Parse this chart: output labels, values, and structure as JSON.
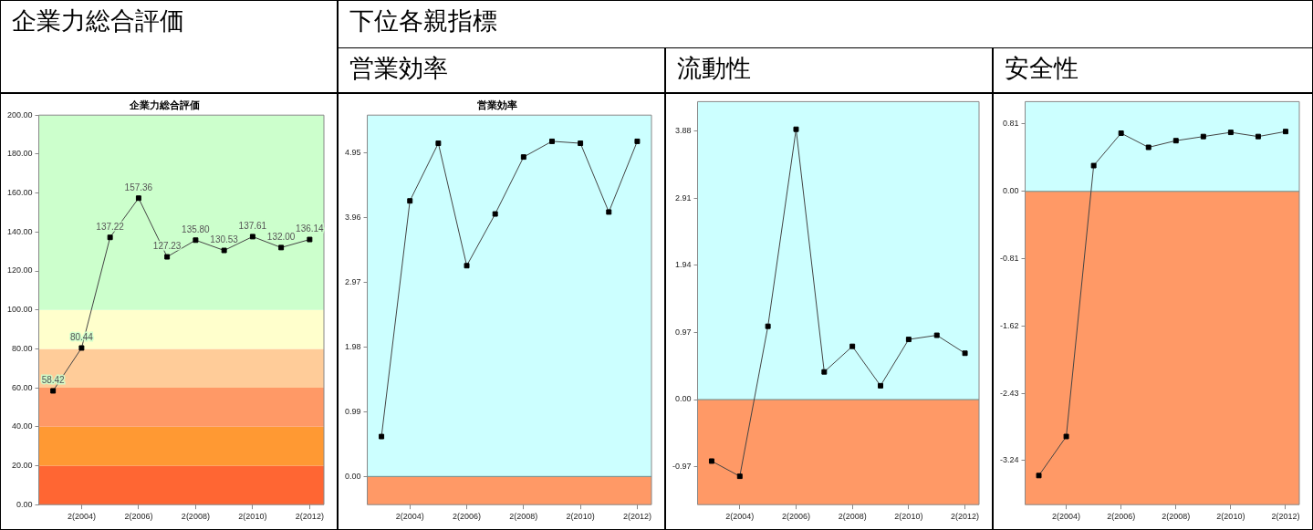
{
  "chart_data": [
    {
      "type": "line",
      "title": "企業力総合評価",
      "subtitle": "企業力総合評価",
      "categories": [
        null,
        "2(2004)",
        null,
        "2(2006)",
        null,
        "2(2008)",
        null,
        "2(2010)",
        null,
        "2(2012)"
      ],
      "series": [
        {
          "color": "#000000",
          "values": [
            58.42,
            80.44,
            137.22,
            157.36,
            127.23,
            135.8,
            130.53,
            137.61,
            132.0,
            136.14
          ],
          "value_labels": [
            "58.42",
            "80.44",
            "137.22",
            "157.36",
            "127.23",
            "135.80",
            "130.53",
            "137.61",
            "132.00",
            "136.14"
          ]
        }
      ],
      "ylim": [
        0,
        200
      ],
      "yticks": [
        {
          "value": 0,
          "label": "0.00"
        },
        {
          "value": 20,
          "label": "20.00"
        },
        {
          "value": 40,
          "label": "40.00"
        },
        {
          "value": 60,
          "label": "60.00"
        },
        {
          "value": 80,
          "label": "80.00"
        },
        {
          "value": 100,
          "label": "100.00"
        },
        {
          "value": 120,
          "label": "120.00"
        },
        {
          "value": 140,
          "label": "140.00"
        },
        {
          "value": 160,
          "label": "160.00"
        },
        {
          "value": 180,
          "label": "180.00"
        },
        {
          "value": 200,
          "label": "200.00"
        }
      ],
      "bands": [
        {
          "axis": "y",
          "from": 0,
          "to": 20,
          "color": "#ff6633"
        },
        {
          "axis": "y",
          "from": 20,
          "to": 40,
          "color": "#ff9933"
        },
        {
          "axis": "y",
          "from": 40,
          "to": 60,
          "color": "#ff9966"
        },
        {
          "axis": "y",
          "from": 60,
          "to": 80,
          "color": "#ffcc99"
        },
        {
          "axis": "y",
          "from": 80,
          "to": 100,
          "color": "#ffffcc"
        },
        {
          "axis": "y",
          "from": 100,
          "to": 200,
          "color": "#ccffcc"
        }
      ],
      "marker": "square",
      "line_style": "solid",
      "legend": false
    },
    {
      "type": "line",
      "title": "営業効率",
      "subtitle": "営業効率",
      "annotations": [
        "下位各親指標"
      ],
      "categories": [
        null,
        "2(2004)",
        null,
        "2(2006)",
        null,
        "2(2008)",
        null,
        "2(2010)",
        null,
        "2(2012)"
      ],
      "series": [
        {
          "color": "#000000",
          "values": [
            0.61,
            4.21,
            5.09,
            3.22,
            4.01,
            4.88,
            5.12,
            5.09,
            4.04,
            5.12
          ]
        }
      ],
      "ylim": [
        -0.43,
        5.52
      ],
      "yticks": [
        {
          "value": 0,
          "label": "0.00"
        },
        0.99,
        1.98,
        2.97,
        3.96,
        4.95
      ],
      "bands": [
        {
          "axis": "y",
          "from": -0.43,
          "to": 0,
          "color": "#ff9966"
        },
        {
          "axis": "y",
          "from": 0,
          "to": 5.52,
          "color": "#ccffff"
        }
      ],
      "marker": "square",
      "line_style": "solid",
      "legend": false
    },
    {
      "type": "line",
      "title": "流動性",
      "categories": [
        null,
        "2(2004)",
        null,
        "2(2006)",
        null,
        "2(2008)",
        null,
        "2(2010)",
        null,
        "2(2012)"
      ],
      "series": [
        {
          "color": "#000000",
          "values": [
            -0.89,
            -1.11,
            1.06,
            3.91,
            0.4,
            0.77,
            0.2,
            0.87,
            0.93,
            0.67
          ]
        }
      ],
      "ylim": [
        -1.52,
        4.31
      ],
      "yticks": [
        -0.97,
        {
          "value": 0,
          "label": "0.00"
        },
        0.97,
        1.94,
        2.91,
        3.88
      ],
      "bands": [
        {
          "axis": "y",
          "from": -1.52,
          "to": 0,
          "color": "#ff9966"
        },
        {
          "axis": "y",
          "from": 0,
          "to": 4.31,
          "color": "#ccffff"
        }
      ],
      "marker": "square",
      "line_style": "solid",
      "legend": false
    },
    {
      "type": "line",
      "title": "安全性",
      "categories": [
        null,
        "2(2004)",
        null,
        "2(2006)",
        null,
        "2(2008)",
        null,
        "2(2010)",
        null,
        "2(2012)"
      ],
      "series": [
        {
          "color": "#000000",
          "values": [
            -3.42,
            -2.95,
            0.31,
            0.7,
            0.53,
            0.61,
            0.66,
            0.71,
            0.66,
            0.72
          ]
        }
      ],
      "ylim": [
        -3.77,
        1.08
      ],
      "yticks": [
        -3.24,
        -2.43,
        -1.62,
        -0.81,
        {
          "value": 0,
          "label": "0.00"
        },
        0.81
      ],
      "bands": [
        {
          "axis": "y",
          "from": -3.77,
          "to": 0,
          "color": "#ff9966"
        },
        {
          "axis": "y",
          "from": 0,
          "to": 1.08,
          "color": "#ccffff"
        }
      ],
      "marker": "square",
      "line_style": "solid",
      "legend": false
    }
  ]
}
